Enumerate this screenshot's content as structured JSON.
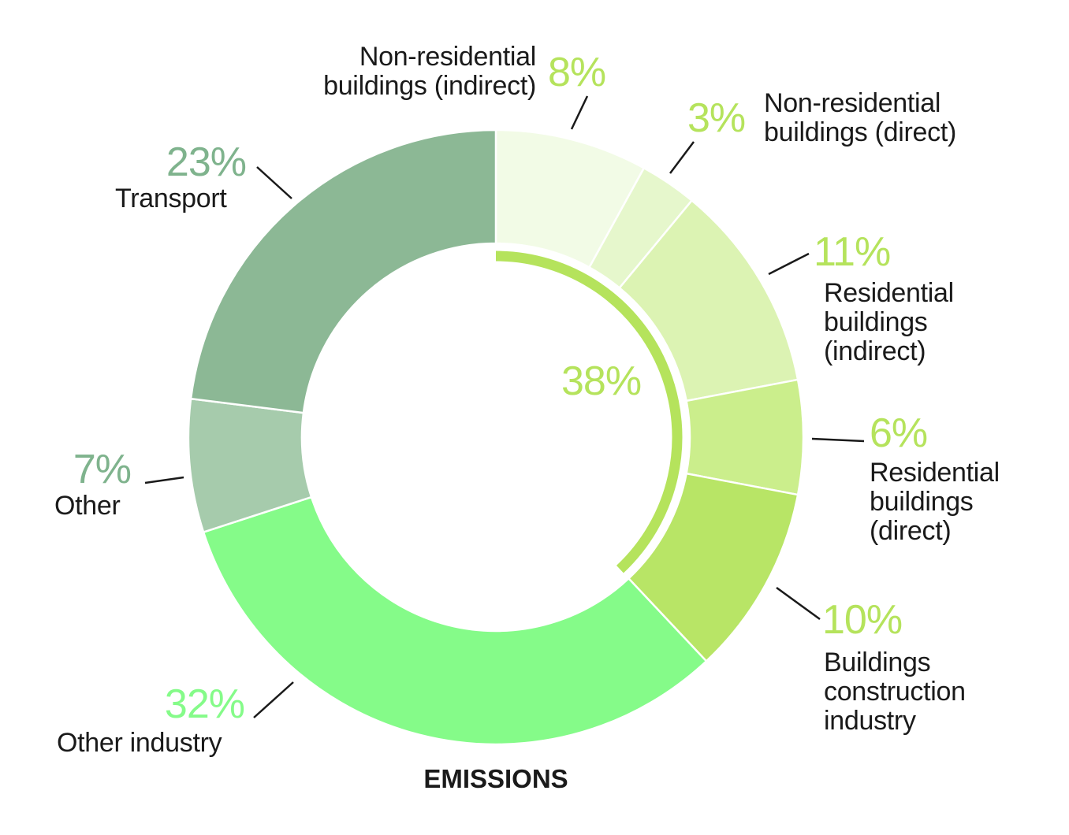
{
  "chart_data": {
    "type": "pie",
    "title": "EMISSIONS",
    "donut": true,
    "slices": [
      {
        "label": "Non-residential buildings (indirect)",
        "value": 8,
        "value_label": "8%",
        "color": "#f2fbe6",
        "label_color": "#b5e35c"
      },
      {
        "label": "Non-residential buildings (direct)",
        "value": 3,
        "value_label": "3%",
        "color": "#e6f7cc",
        "label_color": "#b5e35c"
      },
      {
        "label": "Residential buildings (indirect)",
        "value": 11,
        "value_label": "11%",
        "color": "#dcf3b3",
        "label_color": "#b5e35c"
      },
      {
        "label": "Residential buildings (direct)",
        "value": 6,
        "value_label": "6%",
        "color": "#cbee8c",
        "label_color": "#b5e35c"
      },
      {
        "label": "Buildings construction industry",
        "value": 10,
        "value_label": "10%",
        "color": "#b8e566",
        "label_color": "#b5e35c"
      },
      {
        "label": "Other industry",
        "value": 32,
        "value_label": "32%",
        "color": "#85fb89",
        "label_color": "#85fb89"
      },
      {
        "label": "Other",
        "value": 7,
        "value_label": "7%",
        "color": "#a6cbac",
        "label_color": "#7fb38d"
      },
      {
        "label": "Transport",
        "value": 23,
        "value_label": "23%",
        "color": "#8cb895",
        "label_color": "#7fb38d"
      }
    ],
    "buildings_total": {
      "value": 38,
      "value_label": "38%",
      "color": "#b5e35c"
    }
  }
}
